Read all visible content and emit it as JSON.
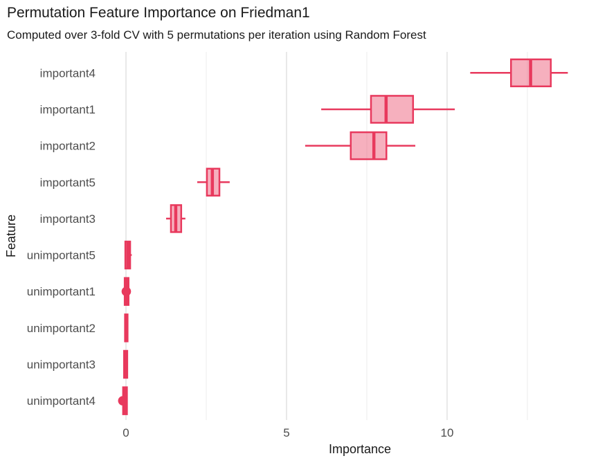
{
  "figure": {
    "title": "Permutation Feature Importance on Friedman1",
    "subtitle": "Computed over 3-fold CV with 5 permutations per iteration using Random Forest"
  },
  "chart_data": {
    "type": "boxplot",
    "orientation": "horizontal",
    "title": "Permutation Feature Importance on Friedman1",
    "subtitle": "Computed over 3-fold CV with 5 permutations per iteration using Random Forest",
    "xlabel": "Importance",
    "ylabel": "Feature",
    "xlim": [
      -0.69,
      14.57
    ],
    "x_major_ticks": [
      0,
      5,
      10
    ],
    "x_major_tick_labels": [
      "0",
      "5",
      "10"
    ],
    "x_minor_gridlines": [
      2.5,
      7.5,
      12.5
    ],
    "grid": "vertical-only",
    "legend": "none",
    "categories": [
      "important4",
      "important1",
      "important2",
      "important5",
      "important3",
      "unimportant5",
      "unimportant1",
      "unimportant2",
      "unimportant3",
      "unimportant4"
    ],
    "series": [
      {
        "feature": "important4",
        "whisker_lo": 10.72,
        "q1": 11.99,
        "median": 12.6,
        "q3": 13.23,
        "whisker_hi": 13.76,
        "outliers": []
      },
      {
        "feature": "important1",
        "whisker_lo": 6.08,
        "q1": 7.63,
        "median": 8.1,
        "q3": 8.94,
        "whisker_hi": 10.24,
        "outliers": []
      },
      {
        "feature": "important2",
        "whisker_lo": 5.58,
        "q1": 7.0,
        "median": 7.72,
        "q3": 8.11,
        "whisker_hi": 9.01,
        "outliers": []
      },
      {
        "feature": "important5",
        "whisker_lo": 2.22,
        "q1": 2.52,
        "median": 2.69,
        "q3": 2.91,
        "whisker_hi": 3.23,
        "outliers": []
      },
      {
        "feature": "important3",
        "whisker_lo": 1.25,
        "q1": 1.4,
        "median": 1.55,
        "q3": 1.72,
        "whisker_hi": 1.85,
        "outliers": []
      },
      {
        "feature": "unimportant5",
        "whisker_lo": -0.03,
        "q1": -0.02,
        "median": 0.06,
        "q3": 0.13,
        "whisker_hi": 0.18,
        "outliers": []
      },
      {
        "feature": "unimportant1",
        "whisker_lo": -0.06,
        "q1": -0.04,
        "median": 0.02,
        "q3": 0.08,
        "whisker_hi": 0.12,
        "outliers": [
          0.01
        ]
      },
      {
        "feature": "unimportant2",
        "whisker_lo": -0.04,
        "q1": -0.03,
        "median": 0.01,
        "q3": 0.05,
        "whisker_hi": 0.07,
        "outliers": []
      },
      {
        "feature": "unimportant3",
        "whisker_lo": -0.07,
        "q1": -0.06,
        "median": -0.01,
        "q3": 0.04,
        "whisker_hi": 0.05,
        "outliers": []
      },
      {
        "feature": "unimportant4",
        "whisker_lo": -0.1,
        "q1": -0.09,
        "median": -0.02,
        "q3": 0.03,
        "whisker_hi": 0.05,
        "outliers": [
          -0.1
        ]
      }
    ],
    "colors": {
      "box_stroke": "#e8395d",
      "box_fill": "#e8395d",
      "box_fill_opacity": 0.4,
      "gridline_major": "#e3e3e3",
      "gridline_minor": "#ededed",
      "tick_label": "#4d4d4d",
      "axis_title": "#1a1a1a",
      "title_text": "#1a1a1a",
      "background": "#ffffff"
    }
  }
}
